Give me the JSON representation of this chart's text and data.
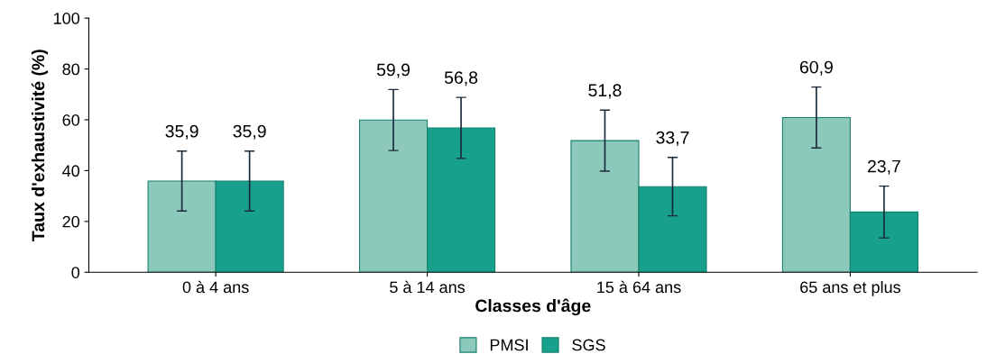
{
  "chart_data": {
    "type": "bar",
    "xlabel": "Classes d'âge",
    "ylabel": "Taux d'exhaustivité (%)",
    "categories": [
      "0 à 4 ans",
      "5 à 14 ans",
      "15 à 64 ans",
      "65 ans et plus"
    ],
    "series": [
      {
        "name": "PMSI",
        "color": "#8cc9bb",
        "values": [
          35.9,
          59.9,
          51.8,
          60.9
        ],
        "value_labels": [
          "35,9",
          "59,9",
          "51,8",
          "60,9"
        ],
        "errors": [
          11.8,
          12,
          12,
          12
        ]
      },
      {
        "name": "SGS",
        "color": "#17a08c",
        "values": [
          35.9,
          56.8,
          33.7,
          23.7
        ],
        "value_labels": [
          "35,9",
          "56,8",
          "33,7",
          "23,7"
        ],
        "errors": [
          11.8,
          12,
          11.5,
          10.2
        ]
      }
    ],
    "ylim": [
      0,
      100
    ],
    "yticks": [
      0,
      20,
      40,
      60,
      80,
      100
    ],
    "grid": false,
    "legend": "bottom"
  }
}
